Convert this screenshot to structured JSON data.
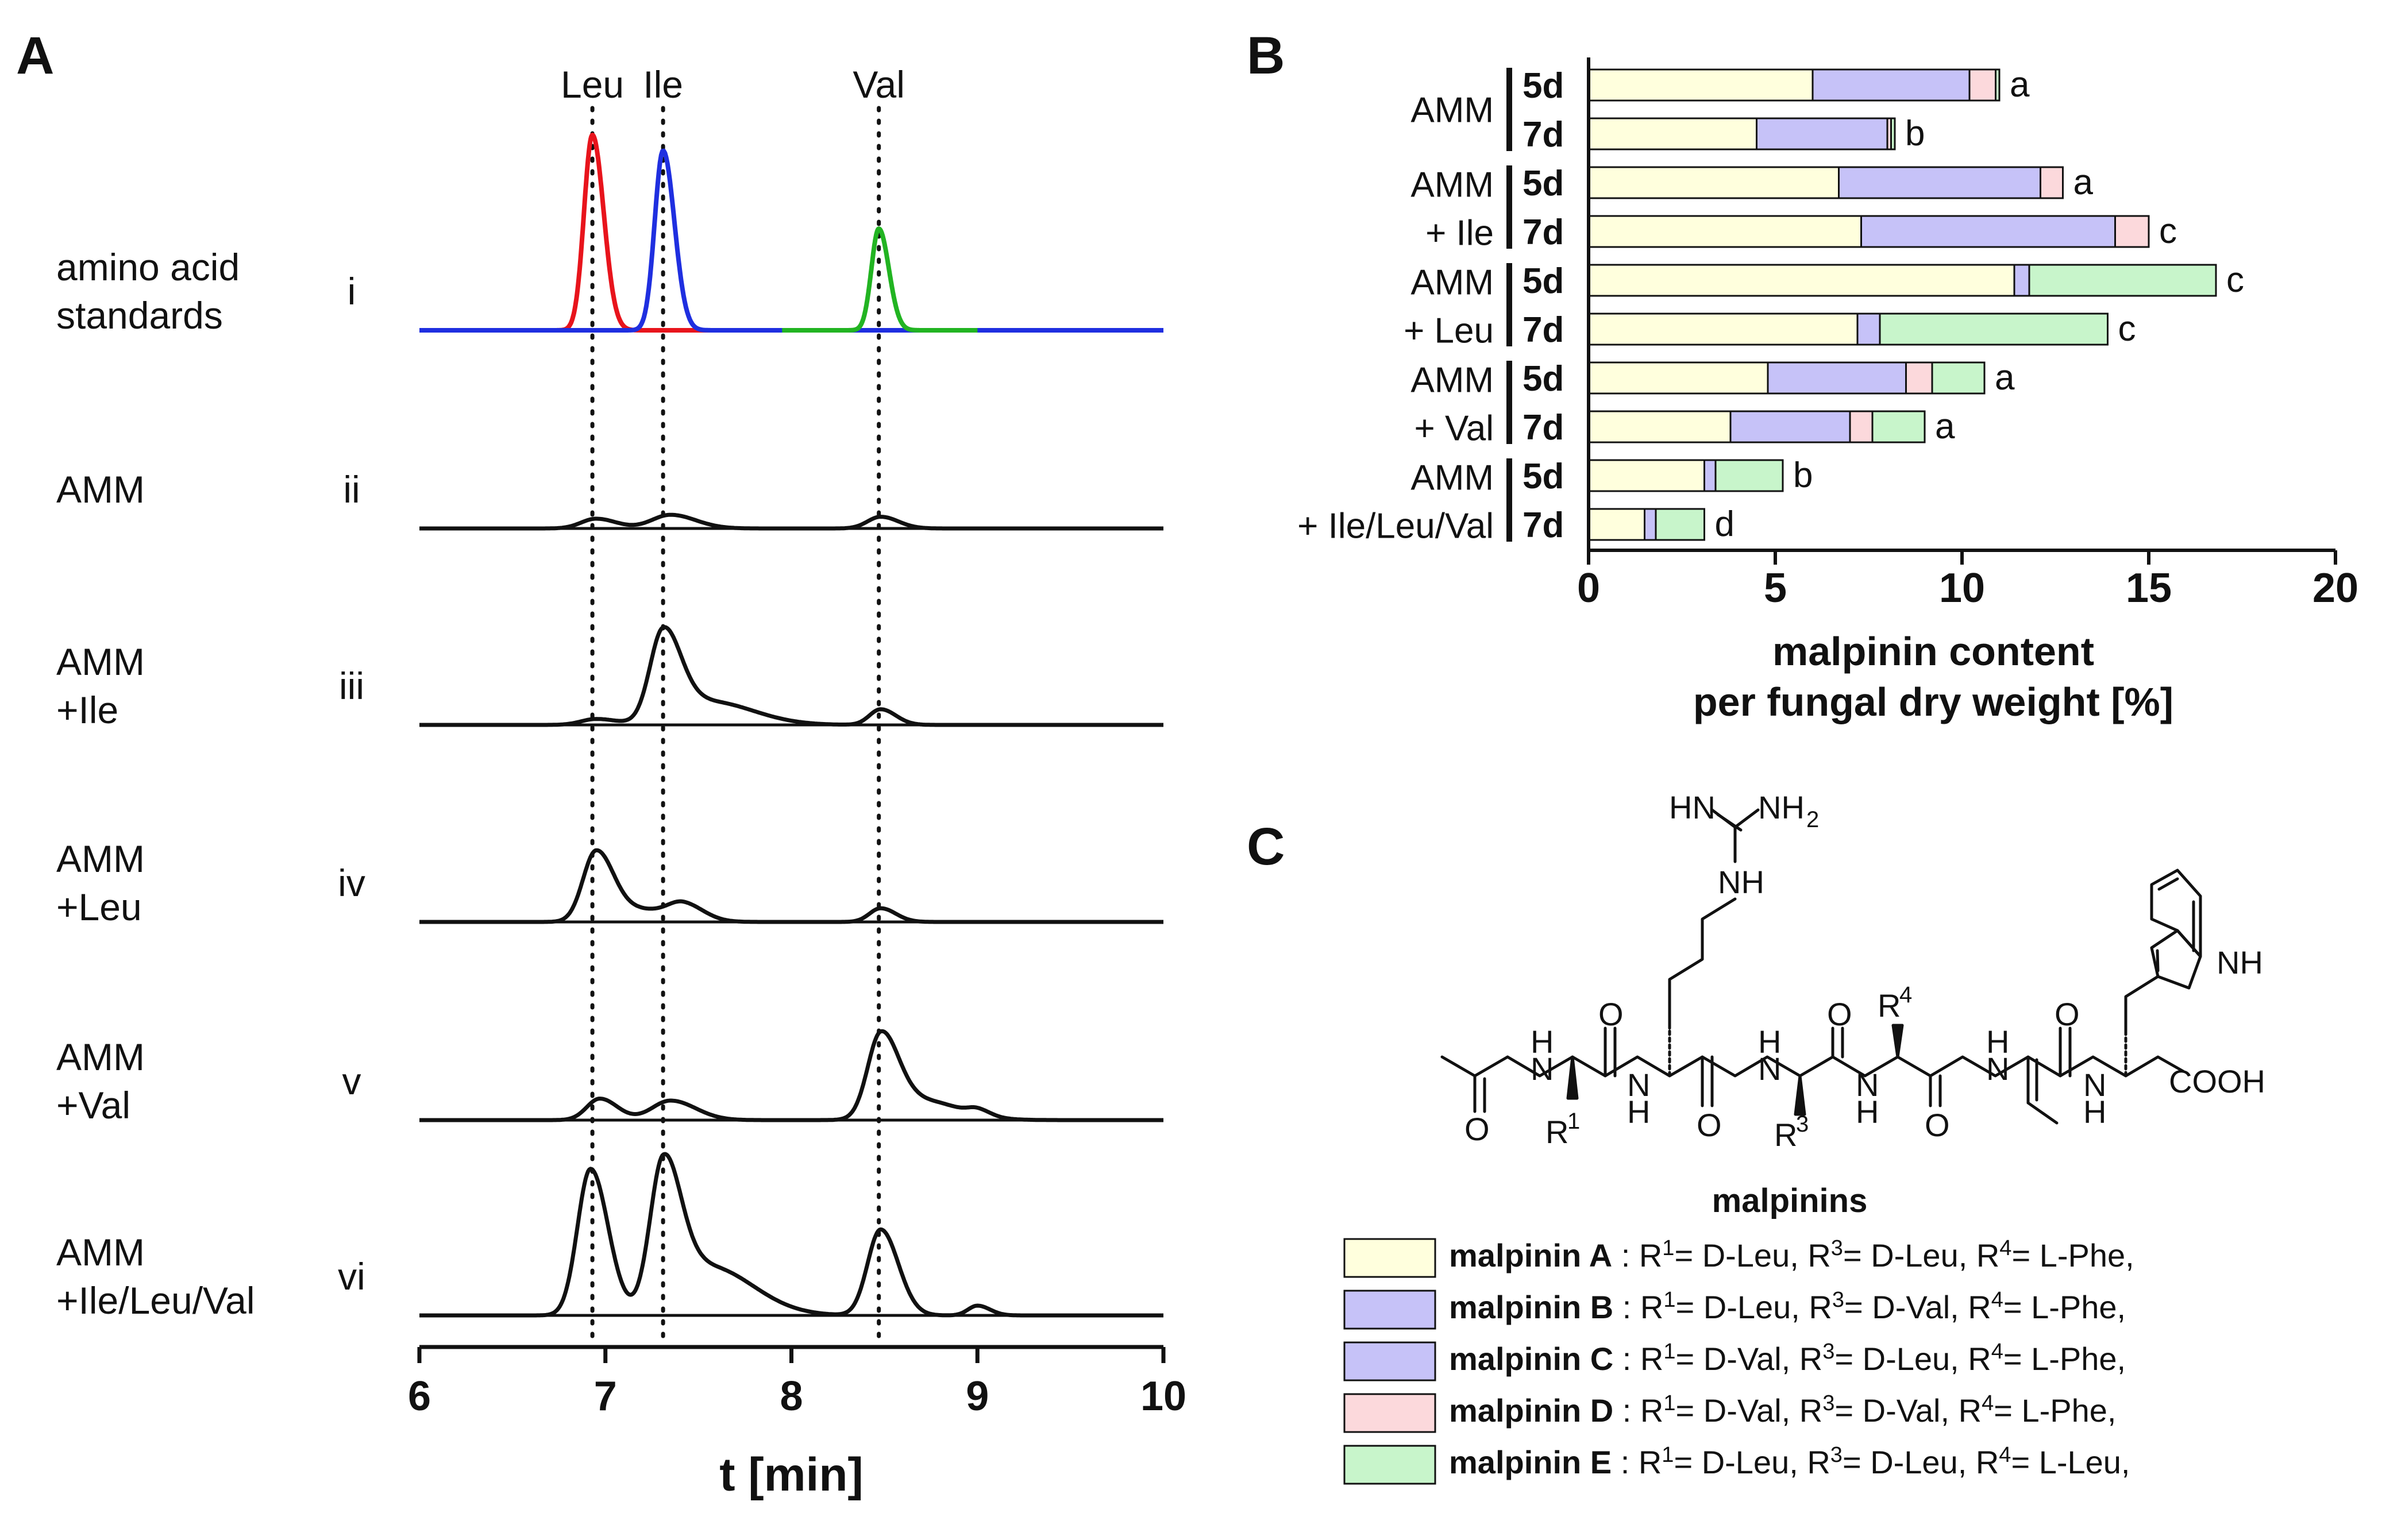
{
  "panels": {
    "a": "A",
    "b": "B",
    "c": "C"
  },
  "colors": {
    "leu": "#e8141c",
    "ile": "#1f2fe0",
    "val": "#22b422",
    "trace": "#111111",
    "mal_a": "#ffffdd",
    "mal_b": "#c6c2f8",
    "mal_c": "#c6c2f8",
    "mal_d": "#fcd9dc",
    "mal_e": "#c8f5cb"
  },
  "chart_data": [
    {
      "type": "line",
      "panel": "A",
      "xlabel": "t [min]",
      "xlim": [
        6,
        10
      ],
      "xticks": [
        6,
        7,
        8,
        9,
        10
      ],
      "reference_lines": [
        {
          "name": "Leu",
          "x": 6.93
        },
        {
          "name": "Ile",
          "x": 7.31
        },
        {
          "name": "Val",
          "x": 8.47
        }
      ],
      "traces": [
        {
          "id": "i",
          "label_lines": [
            "amino acid",
            "standards"
          ],
          "series": [
            {
              "name": "Leu",
              "color": "red",
              "peaks": [
                [
                  6.93,
                  1.0,
                  0.045
                ]
              ]
            },
            {
              "name": "Ile",
              "color": "blue",
              "peaks": [
                [
                  7.31,
                  0.92,
                  0.045
                ]
              ]
            },
            {
              "name": "Val",
              "color": "green",
              "peaks": [
                [
                  8.47,
                  0.52,
                  0.04
                ]
              ]
            }
          ]
        },
        {
          "id": "ii",
          "label_lines": [
            "AMM"
          ],
          "series": [
            {
              "name": "sample",
              "peaks": [
                [
                  6.95,
                  0.05,
                  0.08
                ],
                [
                  7.35,
                  0.07,
                  0.1
                ],
                [
                  8.48,
                  0.06,
                  0.07
                ]
              ]
            }
          ]
        },
        {
          "id": "iii",
          "label_lines": [
            "AMM",
            "+Ile"
          ],
          "series": [
            {
              "name": "sample",
              "peaks": [
                [
                  6.95,
                  0.03,
                  0.08
                ],
                [
                  7.31,
                  0.45,
                  0.07
                ],
                [
                  7.55,
                  0.12,
                  0.18
                ],
                [
                  8.48,
                  0.08,
                  0.06
                ]
              ]
            }
          ]
        },
        {
          "id": "iv",
          "label_lines": [
            "AMM",
            "+Leu"
          ],
          "series": [
            {
              "name": "sample",
              "peaks": [
                [
                  6.95,
                  0.36,
                  0.07
                ],
                [
                  7.2,
                  0.06,
                  0.12
                ],
                [
                  7.42,
                  0.08,
                  0.08
                ],
                [
                  8.48,
                  0.07,
                  0.06
                ]
              ]
            }
          ]
        },
        {
          "id": "v",
          "label_lines": [
            "AMM",
            "+Val"
          ],
          "series": [
            {
              "name": "sample",
              "peaks": [
                [
                  6.97,
                  0.11,
                  0.07
                ],
                [
                  7.35,
                  0.1,
                  0.1
                ],
                [
                  8.48,
                  0.42,
                  0.07
                ],
                [
                  8.7,
                  0.1,
                  0.15
                ],
                [
                  9.0,
                  0.03,
                  0.05
                ]
              ]
            }
          ]
        },
        {
          "id": "vi",
          "label_lines": [
            "AMM",
            "+Ile/Leu/Val"
          ],
          "series": [
            {
              "name": "sample",
              "peaks": [
                [
                  6.92,
                  0.75,
                  0.07
                ],
                [
                  7.31,
                  0.72,
                  0.07
                ],
                [
                  7.55,
                  0.25,
                  0.18
                ],
                [
                  8.48,
                  0.44,
                  0.07
                ],
                [
                  9.0,
                  0.05,
                  0.05
                ]
              ]
            }
          ]
        }
      ]
    },
    {
      "type": "bar",
      "orientation": "horizontal",
      "stacked": true,
      "panel": "B",
      "xlabel": [
        "malpinin content",
        "per fungal dry weight [%]"
      ],
      "xlim": [
        0,
        20
      ],
      "xticks": [
        0,
        5,
        10,
        15,
        20
      ],
      "series_order": [
        "malpinin A",
        "malpinin B",
        "malpinin D",
        "malpinin E"
      ],
      "groups": [
        {
          "label_lines": [
            "AMM"
          ],
          "bars": [
            {
              "day": "5d",
              "values": [
                6.0,
                4.2,
                0.7,
                0.1
              ],
              "letter": "a"
            },
            {
              "day": "7d",
              "values": [
                4.5,
                3.5,
                0.1,
                0.1
              ],
              "letter": "b"
            }
          ]
        },
        {
          "label_lines": [
            "AMM",
            "+ Ile"
          ],
          "bars": [
            {
              "day": "5d",
              "values": [
                6.7,
                5.4,
                0.6,
                0.0
              ],
              "letter": "a"
            },
            {
              "day": "7d",
              "values": [
                7.3,
                6.8,
                0.9,
                0.0
              ],
              "letter": "c"
            }
          ]
        },
        {
          "label_lines": [
            "AMM",
            "+ Leu"
          ],
          "bars": [
            {
              "day": "5d",
              "values": [
                11.4,
                0.4,
                0.0,
                5.0
              ],
              "letter": "c"
            },
            {
              "day": "7d",
              "values": [
                7.2,
                0.6,
                0.0,
                6.1
              ],
              "letter": "c"
            }
          ]
        },
        {
          "label_lines": [
            "AMM",
            "+ Val"
          ],
          "bars": [
            {
              "day": "5d",
              "values": [
                4.8,
                3.7,
                0.7,
                1.4
              ],
              "letter": "a"
            },
            {
              "day": "7d",
              "values": [
                3.8,
                3.2,
                0.6,
                1.4
              ],
              "letter": "a"
            }
          ]
        },
        {
          "label_lines": [
            "AMM",
            "+ Ile/Leu/Val"
          ],
          "bars": [
            {
              "day": "5d",
              "values": [
                3.1,
                0.3,
                0.0,
                1.8
              ],
              "letter": "b"
            },
            {
              "day": "7d",
              "values": [
                1.5,
                0.3,
                0.0,
                1.3
              ],
              "letter": "d"
            }
          ]
        }
      ]
    }
  ],
  "structure": {
    "title": "malpinins",
    "labels": {
      "hn": "HN",
      "nh2": "NH",
      "nh2_sub": "2",
      "nh": "NH",
      "o": "O",
      "h": "H",
      "n": "N",
      "cooh": "COOH",
      "r": "R",
      "r1_sup": "1",
      "r3_sup": "3",
      "r4_sup": "4"
    }
  },
  "legend": [
    {
      "name": "malpinin A",
      "colon": ":",
      "r1": "R",
      "r1_sup": "1",
      "r1_val": "= D-Leu,",
      "r3": "R",
      "r3_sup": "3",
      "r3_val": "= D-Leu,",
      "r4": "R",
      "r4_sup": "4",
      "r4_val": "= L-Phe,"
    },
    {
      "name": "malpinin B",
      "colon": ":",
      "r1": "R",
      "r1_sup": "1",
      "r1_val": "= D-Leu,",
      "r3": "R",
      "r3_sup": "3",
      "r3_val": "= D-Val,",
      "r4": "R",
      "r4_sup": "4",
      "r4_val": "= L-Phe,"
    },
    {
      "name": "malpinin C",
      "colon": ":",
      "r1": "R",
      "r1_sup": "1",
      "r1_val": "= D-Val,",
      "r3": "R",
      "r3_sup": "3",
      "r3_val": "= D-Leu,",
      "r4": "R",
      "r4_sup": "4",
      "r4_val": "= L-Phe,"
    },
    {
      "name": "malpinin D",
      "colon": ":",
      "r1": "R",
      "r1_sup": "1",
      "r1_val": "= D-Val,",
      "r3": "R",
      "r3_sup": "3",
      "r3_val": "= D-Val,",
      "r4": "R",
      "r4_sup": "4",
      "r4_val": "= L-Phe,"
    },
    {
      "name": "malpinin E",
      "colon": ":",
      "r1": "R",
      "r1_sup": "1",
      "r1_val": "= D-Leu,",
      "r3": "R",
      "r3_sup": "3",
      "r3_val": "= D-Leu,",
      "r4": "R",
      "r4_sup": "4",
      "r4_val": "= L-Leu,"
    }
  ]
}
